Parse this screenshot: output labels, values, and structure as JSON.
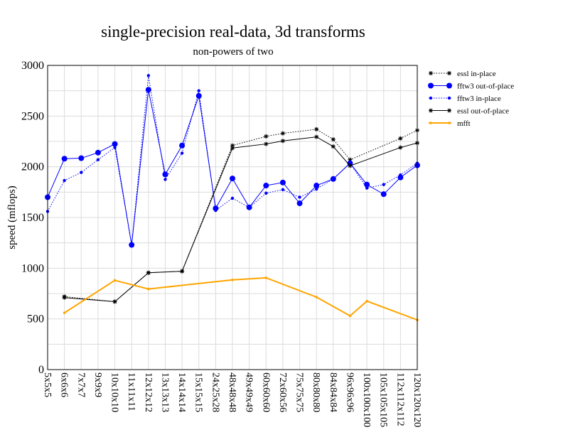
{
  "chart_data": {
    "type": "line",
    "title": "single-precision real-data, 3d transforms",
    "subtitle": "non-powers of two",
    "xlabel": "",
    "ylabel": "speed (mflops)",
    "ylim": [
      0,
      3000
    ],
    "yticks": [
      0,
      500,
      1000,
      1500,
      2000,
      2500,
      3000
    ],
    "grid": true,
    "legend_position": "top-right",
    "categories": [
      "5x5x5",
      "6x6x6",
      "7x7x7",
      "9x9x9",
      "10x10x10",
      "11x11x11",
      "12x12x12",
      "13x13x13",
      "14x14x14",
      "15x15x15",
      "24x25x28",
      "48x48x48",
      "49x49x49",
      "60x60x60",
      "72x60x56",
      "75x75x75",
      "80x80x80",
      "84x84x84",
      "96x96x96",
      "100x100x100",
      "105x105x105",
      "112x112x112",
      "120x120x120"
    ],
    "series": [
      {
        "name": "essl in-place",
        "color": "#000000",
        "style": "dotted",
        "marker": "star",
        "values": [
          null,
          720,
          null,
          null,
          670,
          null,
          955,
          null,
          970,
          null,
          null,
          2210,
          null,
          2300,
          2330,
          null,
          2370,
          2270,
          2070,
          null,
          null,
          2280,
          2360
        ]
      },
      {
        "name": "fftw3 out-of-place",
        "color": "#0000ff",
        "style": "solid",
        "marker": "circle-large",
        "values": [
          1700,
          2080,
          2085,
          2140,
          2225,
          1230,
          2760,
          1925,
          2210,
          2700,
          1590,
          1885,
          1600,
          1815,
          1845,
          1640,
          1815,
          1880,
          2035,
          1825,
          1730,
          1895,
          2015
        ]
      },
      {
        "name": "fftw3 in-place",
        "color": "#0000ff",
        "style": "dotted",
        "marker": "circle-small",
        "values": [
          1560,
          1865,
          1945,
          2070,
          2190,
          1235,
          2900,
          1875,
          2135,
          2750,
          1570,
          1690,
          1600,
          1740,
          1775,
          1700,
          1780,
          1880,
          2035,
          1790,
          1825,
          1920,
          2035
        ]
      },
      {
        "name": "essl out-of-place",
        "color": "#000000",
        "style": "solid",
        "marker": "star",
        "values": [
          null,
          710,
          null,
          null,
          670,
          null,
          955,
          null,
          970,
          null,
          null,
          2185,
          null,
          2225,
          2255,
          null,
          2295,
          2200,
          2010,
          null,
          null,
          2190,
          2235
        ]
      },
      {
        "name": "mfft",
        "color": "#ffa500",
        "style": "solid",
        "marker": "dot",
        "values": [
          null,
          560,
          null,
          null,
          880,
          null,
          795,
          null,
          null,
          null,
          null,
          885,
          null,
          905,
          null,
          null,
          715,
          null,
          530,
          675,
          null,
          null,
          490
        ]
      }
    ]
  }
}
